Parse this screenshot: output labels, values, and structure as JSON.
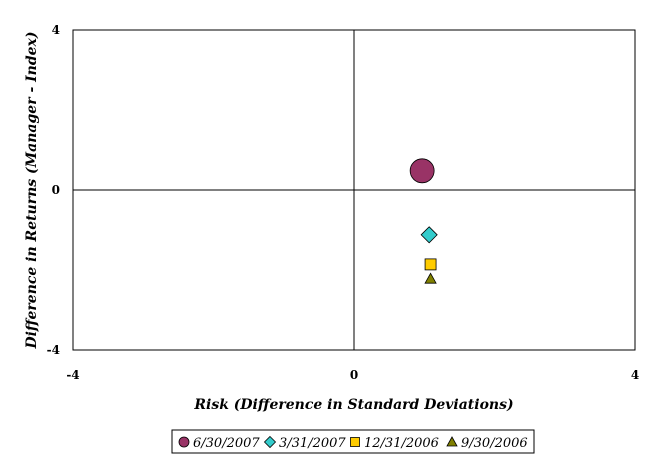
{
  "chart_data": {
    "type": "scatter",
    "title": "",
    "xlabel": "Risk (Difference in Standard Deviations)",
    "ylabel": "Difference in Returns (Manager - Index)",
    "xlim": [
      -4,
      4
    ],
    "ylim": [
      -4,
      4
    ],
    "x_ticks": [
      "-4",
      "0",
      "4"
    ],
    "y_ticks": [
      "4",
      "0",
      "-4"
    ],
    "grid": false,
    "legend_position": "bottom",
    "series": [
      {
        "name": "6/30/2007",
        "marker": "circle",
        "color": "#993366",
        "x": 0.97,
        "y": 0.48
      },
      {
        "name": "3/31/2007",
        "marker": "diamond",
        "color": "#33CCCC",
        "x": 1.07,
        "y": -1.12
      },
      {
        "name": "12/31/2006",
        "marker": "square",
        "color": "#FFCC00",
        "x": 1.09,
        "y": -1.86
      },
      {
        "name": "9/30/2006",
        "marker": "triangle",
        "color": "#808000",
        "x": 1.09,
        "y": -2.22
      }
    ]
  }
}
